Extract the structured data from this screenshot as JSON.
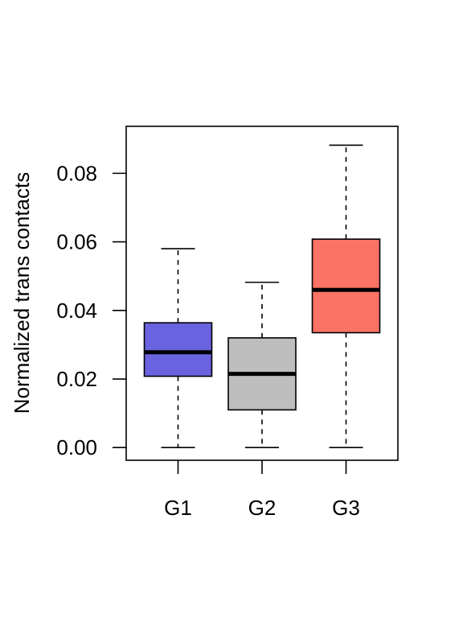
{
  "chart_data": {
    "type": "boxplot",
    "title": "",
    "xlabel": "",
    "ylabel": "Normalized trans contacts",
    "ylim": [
      -0.0037,
      0.0937
    ],
    "yticks": [
      "0.00",
      "0.02",
      "0.04",
      "0.06",
      "0.08"
    ],
    "categories": [
      "G1",
      "G2",
      "G3"
    ],
    "boxes": [
      {
        "name": "G1",
        "min": 0.0,
        "q1": 0.0208,
        "median": 0.0278,
        "q3": 0.0364,
        "max": 0.058,
        "color": "#6A63E0"
      },
      {
        "name": "G2",
        "min": 0.0,
        "q1": 0.011,
        "median": 0.0215,
        "q3": 0.032,
        "max": 0.0482,
        "color": "#BEBEBE"
      },
      {
        "name": "G3",
        "min": 0.0,
        "q1": 0.0335,
        "median": 0.046,
        "q3": 0.0608,
        "max": 0.0882,
        "color": "#FA7364"
      }
    ],
    "grid": false,
    "legend": "none"
  }
}
